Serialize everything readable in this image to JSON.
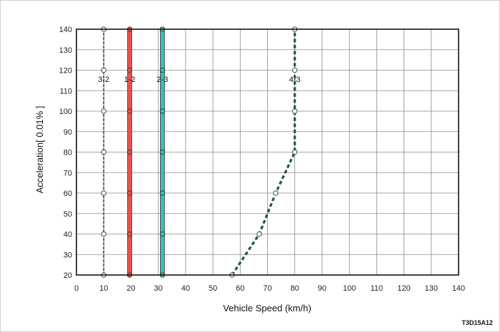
{
  "chart_data": {
    "type": "line",
    "xlabel": "Vehicle Speed (km/h)",
    "ylabel": "Acceleration[ 0.01% ]",
    "xlim": [
      0,
      140
    ],
    "ylim": [
      20,
      140
    ],
    "x_ticks": [
      0,
      10,
      20,
      30,
      40,
      50,
      60,
      70,
      80,
      90,
      100,
      110,
      120,
      130,
      140
    ],
    "y_ticks": [
      20,
      30,
      40,
      50,
      60,
      70,
      80,
      90,
      100,
      110,
      120,
      130,
      140
    ],
    "grid": true,
    "series": [
      {
        "name": "3-2",
        "color": "#555555",
        "style": "thin",
        "marker_fill": "#ffffff",
        "points": [
          [
            10,
            20
          ],
          [
            10,
            40
          ],
          [
            10,
            60
          ],
          [
            10,
            80
          ],
          [
            10,
            100
          ],
          [
            10,
            120
          ],
          [
            10,
            140
          ]
        ]
      },
      {
        "name": "1-2",
        "color": "#e8534f",
        "style": "thick",
        "marker_fill": "#e8534f",
        "points": [
          [
            19.5,
            20
          ],
          [
            19.5,
            40
          ],
          [
            19.5,
            60
          ],
          [
            19.5,
            80
          ],
          [
            19.5,
            100
          ],
          [
            19.5,
            120
          ],
          [
            19.5,
            140
          ]
        ]
      },
      {
        "name": "2-3",
        "color": "#3cbfb4",
        "style": "thick",
        "marker_fill": "#3cbfb4",
        "points": [
          [
            31.5,
            20
          ],
          [
            31.5,
            40
          ],
          [
            31.5,
            60
          ],
          [
            31.5,
            80
          ],
          [
            31.5,
            100
          ],
          [
            31.5,
            120
          ],
          [
            31.5,
            140
          ]
        ]
      },
      {
        "name": "4-3",
        "color": "#1f5a32",
        "style": "dashed",
        "marker_fill": "#ffffff",
        "points": [
          [
            57,
            20
          ],
          [
            67,
            40
          ],
          [
            73,
            60
          ],
          [
            80,
            80
          ],
          [
            80,
            100
          ],
          [
            80,
            120
          ],
          [
            80,
            140
          ]
        ]
      }
    ],
    "image_code": "T3D15A12"
  }
}
